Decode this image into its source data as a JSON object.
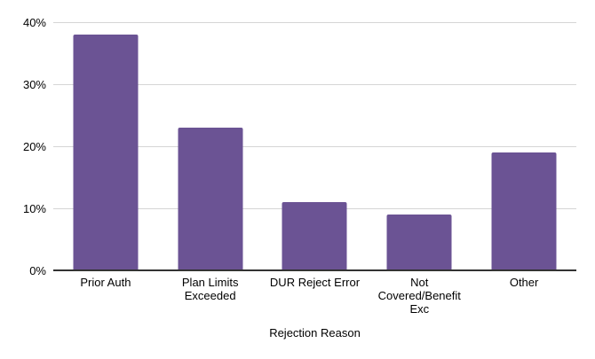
{
  "chart_data": {
    "type": "bar",
    "categories": [
      "Prior Auth",
      "Plan Limits Exceeded",
      "DUR Reject Error",
      "Not Covered/Benefit Exc",
      "Other"
    ],
    "values": [
      38,
      23,
      11,
      9,
      19
    ],
    "title": "",
    "xlabel": "Rejection Reason",
    "ylabel": "",
    "ylim": [
      0,
      40
    ],
    "ytick_step": 10,
    "ytick_labels": [
      "0%",
      "10%",
      "20%",
      "30%",
      "40%"
    ],
    "grid": true,
    "legend": "none",
    "colors": {
      "bar_fill": "#6b5394",
      "gridline": "#d5d5d5",
      "axis_line": "#333333",
      "text": "#000000",
      "background": "#ffffff"
    }
  }
}
